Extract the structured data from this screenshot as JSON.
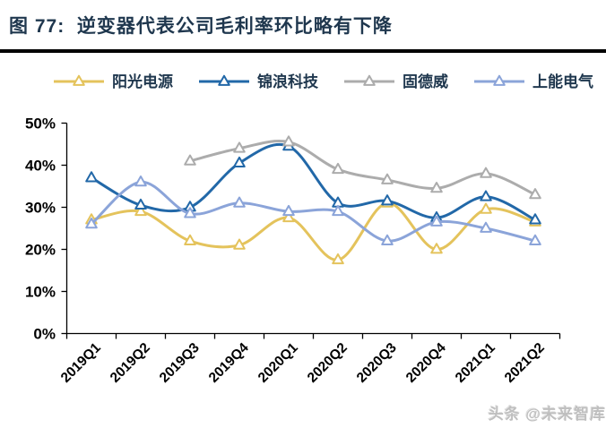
{
  "header": {
    "title": "图 77:  逆变器代表公司毛利率环比略有下降"
  },
  "watermark": "头条 @未来智库",
  "chart_data": {
    "type": "line",
    "title": "逆变器代表公司毛利率环比略有下降",
    "line_style": "smooth",
    "marker": "open-triangle",
    "grid": false,
    "legend_position": "top",
    "unit": "%",
    "ylim": [
      0,
      50
    ],
    "ytick_step": 10,
    "ytick_labels": [
      "0%",
      "10%",
      "20%",
      "30%",
      "40%",
      "50%"
    ],
    "categories": [
      "2019Q1",
      "2019Q2",
      "2019Q3",
      "2019Q4",
      "2020Q1",
      "2020Q2",
      "2020Q3",
      "2020Q4",
      "2021Q1",
      "2021Q2"
    ],
    "series": [
      {
        "name": "阳光电源",
        "color": "#E4C35C",
        "values": [
          27,
          29,
          22,
          21,
          27.5,
          17.5,
          31,
          20,
          29.5,
          26.5
        ]
      },
      {
        "name": "锦浪科技",
        "color": "#2268A8",
        "values": [
          37,
          30.5,
          30,
          40.5,
          44.5,
          31,
          31.5,
          27.5,
          32.5,
          27
        ]
      },
      {
        "name": "固德威",
        "color": "#ACACAC",
        "values": [
          null,
          null,
          41,
          44,
          45.5,
          39,
          36.5,
          34.5,
          38,
          33
        ]
      },
      {
        "name": "上能电气",
        "color": "#8BA4D9",
        "values": [
          26,
          36,
          28.5,
          31,
          29,
          29,
          22,
          26.5,
          25,
          22
        ]
      }
    ],
    "axis_color": "#000000",
    "tick_label_color": "#000000"
  }
}
